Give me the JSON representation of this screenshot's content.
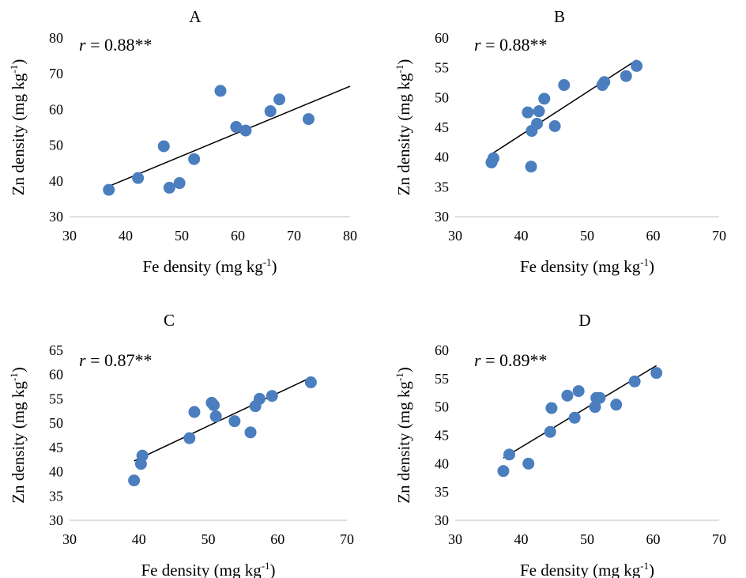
{
  "chart_data": [
    {
      "type": "scatter",
      "title": "A",
      "annotation": {
        "r_symbol": "r",
        "r_text": " = 0.88**"
      },
      "xlabel": {
        "main": "Fe density (mg kg",
        "sup": "-1",
        "end": ")"
      },
      "ylabel": {
        "main": "Zn density (mg kg",
        "sup": "-1",
        "end": ")"
      },
      "xlim": [
        30,
        80
      ],
      "xticks": [
        30,
        40,
        50,
        60,
        70,
        80
      ],
      "ylim": [
        30,
        80
      ],
      "yticks": [
        30,
        40,
        50,
        60,
        70,
        80
      ],
      "points": [
        [
          37,
          37.5
        ],
        [
          42.2,
          40.8
        ],
        [
          46.8,
          49.7
        ],
        [
          47.8,
          38.1
        ],
        [
          49.6,
          39.4
        ],
        [
          52.2,
          46.1
        ],
        [
          56.9,
          65.2
        ],
        [
          59.7,
          55.1
        ],
        [
          61.4,
          54.1
        ],
        [
          65.8,
          59.5
        ],
        [
          67.4,
          62.8
        ],
        [
          72.6,
          57.3
        ]
      ],
      "trendline": [
        [
          37,
          38.5
        ],
        [
          80,
          66.5
        ]
      ],
      "point_color": "#4a7ebf"
    },
    {
      "type": "scatter",
      "title": "B",
      "annotation": {
        "r_symbol": "r",
        "r_text": " = 0.88**"
      },
      "xlabel": {
        "main": "Fe density (mg kg",
        "sup": "-1",
        "end": ")"
      },
      "ylabel": {
        "main": "Zn density (mg kg",
        "sup": "-1",
        "end": ")"
      },
      "xlim": [
        30,
        70
      ],
      "xticks": [
        30,
        40,
        50,
        60,
        70
      ],
      "ylim": [
        30,
        60
      ],
      "yticks": [
        30,
        35,
        40,
        45,
        50,
        55,
        60
      ],
      "points": [
        [
          35.5,
          39.1
        ],
        [
          35.8,
          39.8
        ],
        [
          41,
          47.5
        ],
        [
          41.5,
          38.4
        ],
        [
          41.6,
          44.4
        ],
        [
          42.4,
          45.6
        ],
        [
          42.7,
          47.7
        ],
        [
          43.5,
          49.8
        ],
        [
          45.1,
          45.2
        ],
        [
          46.5,
          52.1
        ],
        [
          52.3,
          52.1
        ],
        [
          52.6,
          52.6
        ],
        [
          55.9,
          53.6
        ],
        [
          57.5,
          55.3
        ]
      ],
      "trendline": [
        [
          35.5,
          40.5
        ],
        [
          57.5,
          56.3
        ]
      ],
      "point_color": "#4a7ebf"
    },
    {
      "type": "scatter",
      "title": "C",
      "annotation": {
        "r_symbol": "r",
        "r_text": " = 0.87**"
      },
      "xlabel": {
        "main": "Fe density (mg kg",
        "sup": "-1",
        "end": ")"
      },
      "ylabel": {
        "main": "Zn density (mg kg",
        "sup": "-1",
        "end": ")"
      },
      "xlim": [
        30,
        70
      ],
      "xticks": [
        30,
        40,
        50,
        60,
        70
      ],
      "ylim": [
        30,
        65
      ],
      "yticks": [
        30,
        35,
        40,
        45,
        50,
        55,
        60,
        65
      ],
      "points": [
        [
          39.3,
          38.2
        ],
        [
          40.3,
          41.6
        ],
        [
          40.5,
          43.3
        ],
        [
          47.3,
          46.9
        ],
        [
          48,
          52.3
        ],
        [
          50.5,
          54.2
        ],
        [
          50.8,
          53.7
        ],
        [
          51.1,
          51.4
        ],
        [
          53.8,
          50.4
        ],
        [
          56.1,
          48.1
        ],
        [
          56.8,
          53.5
        ],
        [
          57.4,
          55
        ],
        [
          59.2,
          55.6
        ],
        [
          64.8,
          58.4
        ]
      ],
      "trendline": [
        [
          39.3,
          42.2
        ],
        [
          64.8,
          59.4
        ]
      ],
      "point_color": "#4a7ebf"
    },
    {
      "type": "scatter",
      "title": "D",
      "annotation": {
        "r_symbol": "r",
        "r_text": " = 0.89**"
      },
      "xlabel": {
        "main": "Fe density (mg kg",
        "sup": "-1",
        "end": ")"
      },
      "ylabel": {
        "main": "Zn density (mg kg",
        "sup": "-1",
        "end": ")"
      },
      "xlim": [
        30,
        70
      ],
      "xticks": [
        30,
        40,
        50,
        60,
        70
      ],
      "ylim": [
        30,
        60
      ],
      "yticks": [
        30,
        35,
        40,
        45,
        50,
        55,
        60
      ],
      "points": [
        [
          37.3,
          38.7
        ],
        [
          38.2,
          41.6
        ],
        [
          41.1,
          40
        ],
        [
          44.4,
          45.6
        ],
        [
          44.6,
          49.8
        ],
        [
          47,
          52
        ],
        [
          48.1,
          48.1
        ],
        [
          48.7,
          52.8
        ],
        [
          51.2,
          50
        ],
        [
          51.4,
          51.6
        ],
        [
          51.9,
          51.6
        ],
        [
          54.4,
          50.4
        ],
        [
          57.2,
          54.5
        ],
        [
          60.5,
          56
        ]
      ],
      "trendline": [
        [
          37.3,
          41
        ],
        [
          60.5,
          57.3
        ]
      ],
      "point_color": "#4a7ebf"
    }
  ]
}
